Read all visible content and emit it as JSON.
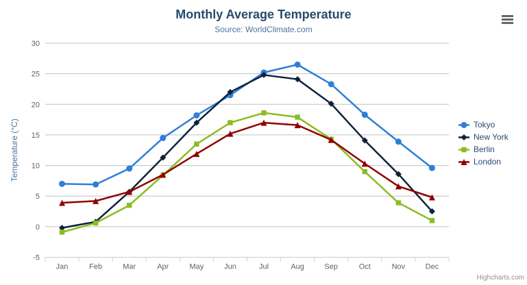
{
  "chart": {
    "title": "Monthly Average Temperature",
    "subtitle": "Source: WorldClimate.com",
    "credit": "Highcharts.com"
  },
  "chart_data": {
    "type": "line",
    "title": "Monthly Average Temperature",
    "subtitle": "Source: WorldClimate.com",
    "categories": [
      "Jan",
      "Feb",
      "Mar",
      "Apr",
      "May",
      "Jun",
      "Jul",
      "Aug",
      "Sep",
      "Oct",
      "Nov",
      "Dec"
    ],
    "series": [
      {
        "name": "Tokyo",
        "marker": "circle",
        "color": "#2f7ed8",
        "values": [
          7.0,
          6.9,
          9.5,
          14.5,
          18.2,
          21.5,
          25.2,
          26.5,
          23.3,
          18.3,
          13.9,
          9.6
        ]
      },
      {
        "name": "New York",
        "marker": "diamond",
        "color": "#0d233a",
        "values": [
          -0.2,
          0.8,
          5.7,
          11.3,
          17.0,
          22.0,
          24.8,
          24.1,
          20.1,
          14.1,
          8.6,
          2.5
        ]
      },
      {
        "name": "Berlin",
        "marker": "square",
        "color": "#8bbc21",
        "values": [
          -0.9,
          0.6,
          3.5,
          8.4,
          13.5,
          17.0,
          18.6,
          17.9,
          14.3,
          9.0,
          3.9,
          1.0
        ]
      },
      {
        "name": "London",
        "marker": "triangle",
        "color": "#910000",
        "values": [
          3.9,
          4.2,
          5.7,
          8.5,
          11.9,
          15.2,
          17.0,
          16.6,
          14.2,
          10.3,
          6.6,
          4.8
        ]
      }
    ],
    "xlabel": "",
    "ylabel": "Temperature (°C)",
    "ylim": [
      -5,
      30
    ],
    "ytick_step": 5,
    "grid": true,
    "legend_position": "right"
  },
  "style_colors": {
    "grid_line": "#c0c0c0",
    "axis_line": "#c0d0e0",
    "axis_label": "#606060",
    "axis_title": "#4d759e",
    "title_text": "#274b6d",
    "subtitle_text": "#4d759e",
    "legend_text": "#274b6d",
    "credit_text": "#909090"
  }
}
